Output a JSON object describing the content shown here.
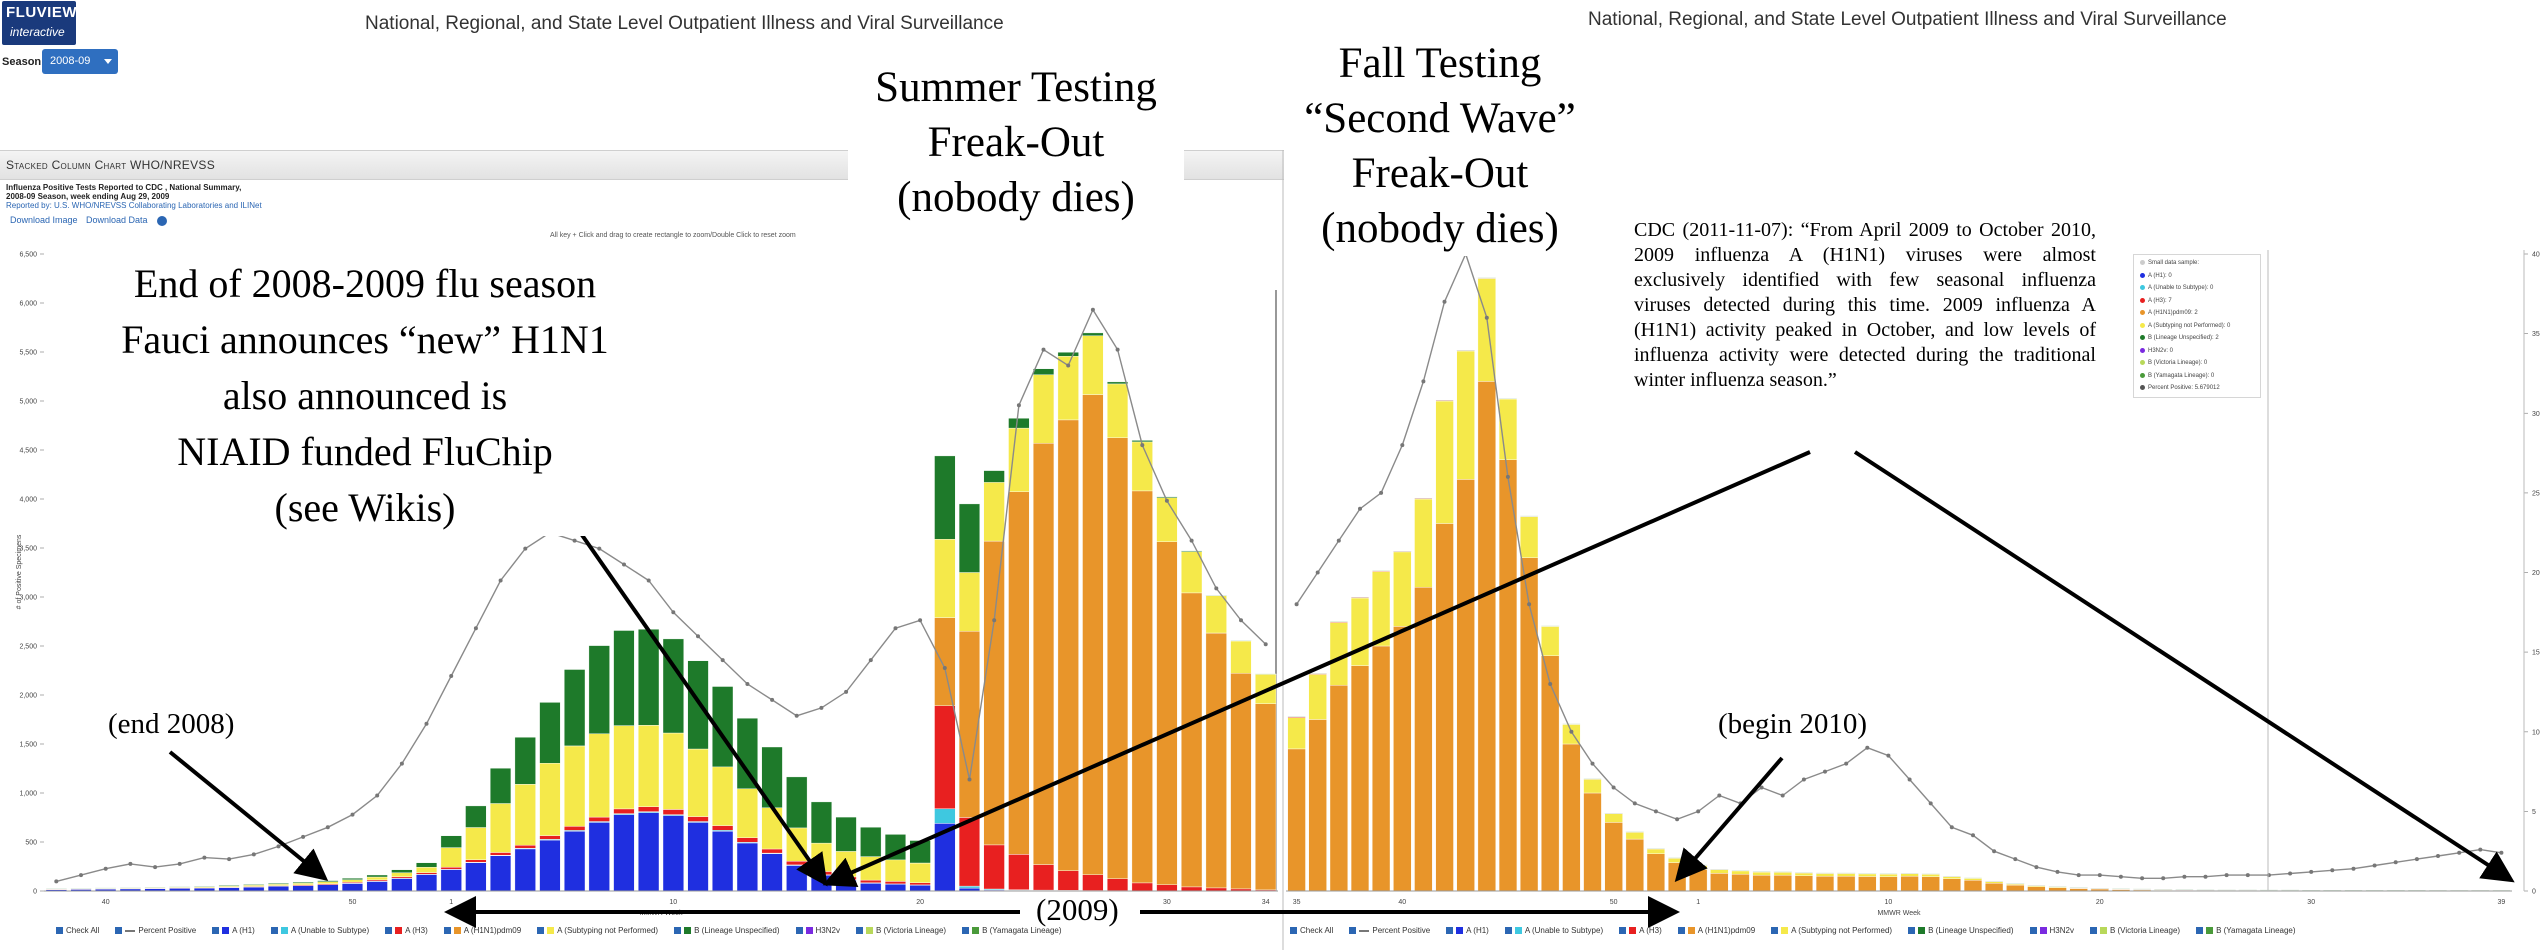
{
  "header": {
    "logo_line1": "FLUVIEW",
    "logo_line2": "interactive",
    "title_left": "National, Regional, and State Level Outpatient Illness and Viral Surveillance",
    "title_right": "National, Regional, and State Level Outpatient Illness and Viral Surveillance",
    "season_label": "Season:",
    "season_value": "2008-09"
  },
  "panel": {
    "title": "Stacked Column Chart WHO/NREVSS",
    "subtitle1": "Influenza Positive Tests Reported to CDC , National Summary,",
    "subtitle2": "2008-09 Season, week ending Aug 29, 2009",
    "subtitle3": "Reported by: U.S. WHO/NREVSS Collaborating Laboratories and ILINet",
    "download_image": "Download Image",
    "download_data": "Download Data",
    "zoom_hint": "All key + Click and drag to create rectangle to zoom/Double Click to reset zoom"
  },
  "annotations": {
    "summer": [
      "Summer Testing",
      "Freak-Out",
      "(nobody dies)"
    ],
    "fall": [
      "Fall Testing",
      "“Second Wave”",
      "Freak-Out",
      "(nobody dies)"
    ],
    "fauci": [
      "End of 2008-2009 flu season",
      "Fauci announces “new” H1N1",
      "also announced is",
      "NIAID funded FluChip",
      "(see Wikis)"
    ],
    "end2008": "(end 2008)",
    "begin2010": "(begin 2010)",
    "year2009": "(2009)",
    "cdc_quote": "CDC (2011-11-07): “From April 2009 to October 2010, 2009 influenza A (H1N1) viruses were almost exclusively identified with few seasonal influenza viruses detected during this time. 2009 influenza A (H1N1) activity peaked in October, and low levels of influenza activity were detected during the traditional winter influenza season.”"
  },
  "tooltip_legend": [
    {
      "label": "Small data sample:",
      "color": "#cccccc"
    },
    {
      "label": "A (H1): 0",
      "color": "#1f2fe0"
    },
    {
      "label": "A (Unable to Subtype): 0",
      "color": "#3ec8e0"
    },
    {
      "label": "A (H3): 7",
      "color": "#e82020"
    },
    {
      "label": "A (H1N1)pdm09: 2",
      "color": "#e8952a"
    },
    {
      "label": "A (Subtyping not Performed): 0",
      "color": "#f5e94a"
    },
    {
      "label": "B (Lineage Unspecified): 2",
      "color": "#1e7a2a"
    },
    {
      "label": "H3N2v: 0",
      "color": "#7a2ae0"
    },
    {
      "label": "B (Victoria Lineage): 0",
      "color": "#b8d85a"
    },
    {
      "label": "B (Yamagata Lineage): 0",
      "color": "#4a9a3a"
    },
    {
      "label": "Percent Positive: 5.679012",
      "color": "#555555"
    }
  ],
  "bottom_legend": [
    {
      "label": "Check All",
      "color": "#2b66b3"
    },
    {
      "label": "Percent Positive",
      "color": "#777777"
    },
    {
      "label": "A (H1)",
      "color": "#1f2fe0"
    },
    {
      "label": "A (Unable to Subtype)",
      "color": "#3ec8e0"
    },
    {
      "label": "A (H3)",
      "color": "#e82020"
    },
    {
      "label": "A (H1N1)pdm09",
      "color": "#e8952a"
    },
    {
      "label": "A (Subtyping not Performed)",
      "color": "#f5e94a"
    },
    {
      "label": "B (Lineage Unspecified)",
      "color": "#1e7a2a"
    },
    {
      "label": "H3N2v",
      "color": "#7a2ae0"
    },
    {
      "label": "B (Victoria Lineage)",
      "color": "#b8d85a"
    },
    {
      "label": "B (Yamagata Lineage)",
      "color": "#4a9a3a"
    }
  ],
  "colors": {
    "h1": "#1f2fe0",
    "unable": "#3ec8e0",
    "h3": "#e82020",
    "pdm": "#e8952a",
    "notperf": "#f5e94a",
    "blineage": "#1e7a2a",
    "percent_line": "#8a8a8a"
  },
  "chart_data": [
    {
      "type": "bar",
      "stacked": true,
      "panel": "left (2008-09 season)",
      "ylabel": "# of Positive Specimens",
      "xlabel": "MMWR Week",
      "ylim": [
        0,
        6500
      ],
      "y_ticks": [
        "0",
        "500",
        "1,000",
        "1,500",
        "2,000",
        "2,500",
        "3,000",
        "3,500",
        "4,000",
        "4,500",
        "5,000",
        "5,500",
        "6,000",
        "6,500"
      ],
      "x_ticks": [
        "40",
        "50",
        "1",
        "10",
        "20",
        "30",
        "34"
      ],
      "y2lim": [
        0,
        40
      ],
      "x": [
        38,
        39,
        40,
        41,
        42,
        43,
        44,
        45,
        46,
        47,
        48,
        49,
        50,
        51,
        52,
        53,
        1,
        2,
        3,
        4,
        5,
        6,
        7,
        8,
        9,
        10,
        11,
        12,
        13,
        14,
        15,
        16,
        17,
        18,
        19,
        20,
        21,
        22,
        23,
        24,
        25,
        26,
        27,
        28,
        29,
        30,
        31,
        32,
        33,
        34
      ],
      "series": [
        {
          "name": "A (H1)",
          "values": [
            15,
            18,
            20,
            22,
            25,
            28,
            30,
            35,
            40,
            48,
            55,
            65,
            80,
            100,
            130,
            170,
            220,
            290,
            360,
            430,
            520,
            610,
            700,
            780,
            800,
            770,
            700,
            610,
            490,
            380,
            260,
            160,
            110,
            80,
            70,
            60,
            690,
            30,
            10,
            8,
            5,
            4,
            3,
            3,
            2,
            2,
            1,
            1,
            1,
            1
          ]
        },
        {
          "name": "A (Unable to Subtype)",
          "values": [
            0,
            0,
            0,
            0,
            0,
            0,
            0,
            0,
            0,
            0,
            0,
            0,
            1,
            1,
            2,
            2,
            3,
            4,
            5,
            6,
            7,
            8,
            9,
            10,
            10,
            10,
            9,
            9,
            8,
            7,
            6,
            5,
            4,
            3,
            3,
            3,
            150,
            20,
            10,
            5,
            4,
            3,
            2,
            2,
            1,
            1,
            1,
            1,
            0,
            0
          ]
        },
        {
          "name": "A (H3)",
          "values": [
            2,
            2,
            3,
            3,
            4,
            4,
            5,
            5,
            6,
            7,
            8,
            9,
            10,
            12,
            14,
            16,
            20,
            24,
            28,
            32,
            38,
            42,
            45,
            48,
            50,
            52,
            50,
            48,
            45,
            42,
            38,
            34,
            30,
            28,
            25,
            22,
            1050,
            700,
            450,
            360,
            260,
            200,
            160,
            120,
            80,
            60,
            40,
            30,
            20,
            10
          ]
        },
        {
          "name": "A (H1N1)pdm09",
          "values": [
            0,
            0,
            0,
            0,
            0,
            0,
            0,
            0,
            0,
            0,
            0,
            0,
            0,
            0,
            0,
            0,
            0,
            0,
            0,
            0,
            0,
            0,
            0,
            0,
            0,
            0,
            0,
            0,
            0,
            0,
            0,
            0,
            0,
            0,
            0,
            0,
            900,
            1900,
            3100,
            3700,
            4300,
            4600,
            4900,
            4500,
            4000,
            3500,
            3000,
            2600,
            2200,
            1900
          ]
        },
        {
          "name": "A (Subtyping not Performed)",
          "values": [
            5,
            5,
            6,
            6,
            7,
            8,
            9,
            10,
            12,
            14,
            16,
            20,
            25,
            30,
            40,
            55,
            200,
            330,
            500,
            620,
            740,
            820,
            850,
            850,
            830,
            780,
            690,
            600,
            500,
            420,
            340,
            290,
            260,
            240,
            220,
            200,
            800,
            600,
            600,
            650,
            700,
            650,
            600,
            550,
            500,
            450,
            420,
            380,
            330,
            300
          ]
        },
        {
          "name": "B (Lineage Unspecified)",
          "values": [
            3,
            3,
            3,
            4,
            4,
            5,
            6,
            7,
            8,
            9,
            10,
            12,
            15,
            20,
            30,
            45,
            120,
            220,
            360,
            480,
            620,
            780,
            900,
            970,
            980,
            960,
            900,
            820,
            720,
            620,
            520,
            420,
            350,
            300,
            260,
            230,
            850,
            700,
            120,
            100,
            60,
            40,
            30,
            20,
            15,
            10,
            8,
            6,
            5,
            4
          ]
        }
      ],
      "percent_positive_series": {
        "name": "Percent Positive",
        "values": [
          0.6,
          1.0,
          1.4,
          1.7,
          1.5,
          1.7,
          2.1,
          2.0,
          2.3,
          2.8,
          3.4,
          4.0,
          4.8,
          6.0,
          8.0,
          10.5,
          13.5,
          16.5,
          19.5,
          21.5,
          22.5,
          22.0,
          21.5,
          20.5,
          19.5,
          17.5,
          16.0,
          14.5,
          13.0,
          12.0,
          11.0,
          11.5,
          12.5,
          14.5,
          16.5,
          17.0,
          14.0,
          7.0,
          17.0,
          30.5,
          34.0,
          33.0,
          36.5,
          34.0,
          28.0,
          24.5,
          22.0,
          19.0,
          17.0,
          15.5
        ]
      }
    },
    {
      "type": "bar",
      "stacked": true,
      "panel": "right (2009-10 season)",
      "xlabel": "MMWR Week",
      "y2_ticks": [
        "0",
        "5",
        "10",
        "15",
        "20",
        "25",
        "30",
        "35",
        "40"
      ],
      "y2lim": [
        0,
        40
      ],
      "x_ticks": [
        "35",
        "40",
        "50",
        "1",
        "10",
        "20",
        "30",
        "39"
      ],
      "x": [
        35,
        36,
        37,
        38,
        39,
        40,
        41,
        42,
        43,
        44,
        45,
        46,
        47,
        48,
        49,
        50,
        51,
        52,
        53,
        1,
        2,
        3,
        4,
        5,
        6,
        7,
        8,
        9,
        10,
        11,
        12,
        13,
        14,
        15,
        16,
        17,
        18,
        19,
        20,
        21,
        22,
        23,
        24,
        25,
        26,
        27,
        28,
        29,
        30,
        31,
        32,
        33,
        34,
        35,
        36,
        37,
        38,
        39
      ],
      "series": [
        {
          "name": "A (H1N1)pdm09",
          "values": [
            1450,
            1750,
            2100,
            2300,
            2500,
            2700,
            3100,
            3750,
            4200,
            5200,
            4400,
            3400,
            2400,
            1500,
            1000,
            700,
            530,
            380,
            290,
            220,
            180,
            170,
            160,
            160,
            155,
            150,
            150,
            148,
            145,
            150,
            145,
            125,
            110,
            80,
            60,
            45,
            35,
            25,
            20,
            15,
            12,
            10,
            8,
            6,
            5,
            5,
            4,
            4,
            3,
            3,
            3,
            3,
            3,
            3,
            2,
            2,
            2,
            2
          ]
        },
        {
          "name": "A (Subtyping not Performed)",
          "values": [
            320,
            460,
            640,
            690,
            760,
            760,
            900,
            1250,
            1310,
            1050,
            620,
            420,
            300,
            200,
            140,
            90,
            70,
            50,
            45,
            40,
            38,
            36,
            34,
            32,
            30,
            30,
            30,
            28,
            28,
            28,
            26,
            22,
            20,
            16,
            12,
            10,
            8,
            6,
            5,
            4,
            3,
            3,
            2,
            2,
            2,
            2,
            1,
            1,
            1,
            1,
            1,
            1,
            1,
            1,
            1,
            1,
            1,
            1
          ]
        },
        {
          "name": "A (H3)",
          "values": [
            10,
            10,
            9,
            8,
            8,
            7,
            7,
            7,
            6,
            6,
            5,
            5,
            4,
            4,
            4,
            3,
            3,
            3,
            3,
            3,
            3,
            3,
            3,
            3,
            3,
            3,
            3,
            3,
            3,
            3,
            3,
            3,
            3,
            3,
            3,
            3,
            3,
            3,
            3,
            3,
            3,
            3,
            3,
            3,
            3,
            3,
            3,
            3,
            3,
            3,
            3,
            3,
            3,
            3,
            3,
            3,
            3,
            3
          ]
        },
        {
          "name": "B (Lineage Unspecified)",
          "values": [
            2,
            2,
            2,
            2,
            2,
            2,
            3,
            3,
            3,
            3,
            3,
            3,
            3,
            3,
            3,
            3,
            3,
            3,
            3,
            3,
            3,
            3,
            3,
            3,
            3,
            3,
            3,
            3,
            3,
            3,
            3,
            3,
            3,
            3,
            3,
            3,
            3,
            3,
            3,
            3,
            3,
            3,
            3,
            3,
            3,
            3,
            3,
            3,
            3,
            3,
            3,
            3,
            3,
            3,
            3,
            3,
            3,
            3
          ]
        }
      ],
      "percent_positive_series": {
        "name": "Percent Positive",
        "values": [
          18,
          20,
          22,
          24,
          25,
          28,
          32,
          37,
          40,
          36,
          26,
          18,
          13,
          10,
          8,
          6.5,
          5.5,
          5.0,
          4.5,
          5.0,
          6.0,
          5.5,
          6.5,
          6.0,
          7.0,
          7.5,
          8.0,
          9.0,
          8.5,
          7.0,
          5.5,
          4.0,
          3.5,
          2.5,
          2.0,
          1.5,
          1.2,
          1.0,
          1.0,
          0.9,
          0.8,
          0.8,
          0.9,
          0.9,
          1.0,
          1.0,
          1.0,
          1.1,
          1.2,
          1.3,
          1.4,
          1.6,
          1.8,
          2.0,
          2.2,
          2.4,
          2.6,
          2.4
        ]
      }
    }
  ]
}
